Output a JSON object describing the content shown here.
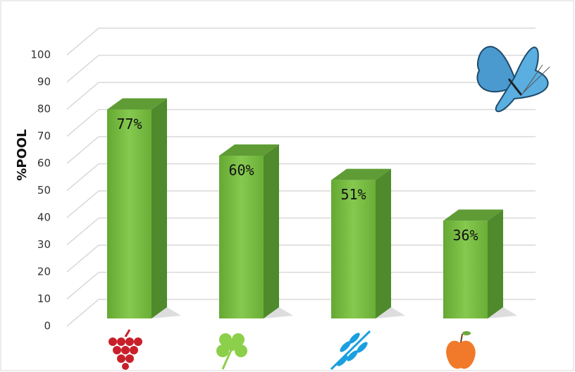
{
  "chart_data": {
    "type": "bar3d",
    "ylabel": "%POOL",
    "categories": [
      null,
      null,
      null,
      null
    ],
    "values": [
      77,
      60,
      51,
      36
    ],
    "value_labels": [
      "77%",
      "60%",
      "51%",
      "36%"
    ],
    "color": "#74b83e",
    "ylim": [
      0,
      100
    ],
    "yticks": [
      0,
      10,
      20,
      30,
      40,
      50,
      60,
      70,
      80,
      90,
      100
    ],
    "grid": true
  }
}
